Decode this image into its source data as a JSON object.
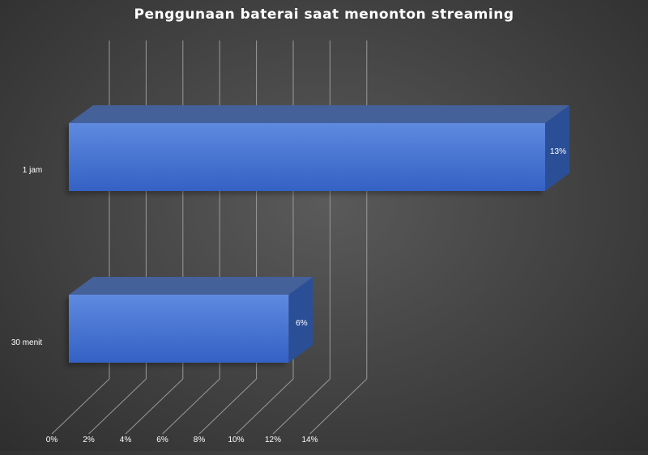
{
  "chart_data": {
    "type": "bar",
    "orientation": "horizontal",
    "style": "3d",
    "title": "Penggunaan baterai saat menonton streaming",
    "categories": [
      "1 jam",
      "30 menit"
    ],
    "values": [
      13,
      6
    ],
    "data_labels": [
      "13%",
      "6%"
    ],
    "x_ticks": [
      "0%",
      "2%",
      "4%",
      "6%",
      "8%",
      "10%",
      "12%",
      "14%"
    ],
    "xlim": [
      0,
      14
    ],
    "grid": true,
    "legend": "none",
    "colors": {
      "bar_front": "#4a78d0",
      "bar_top": "#45619a",
      "bar_side": "#2b4f96",
      "grid": "#9a9a9a",
      "text": "#ffffff"
    }
  }
}
